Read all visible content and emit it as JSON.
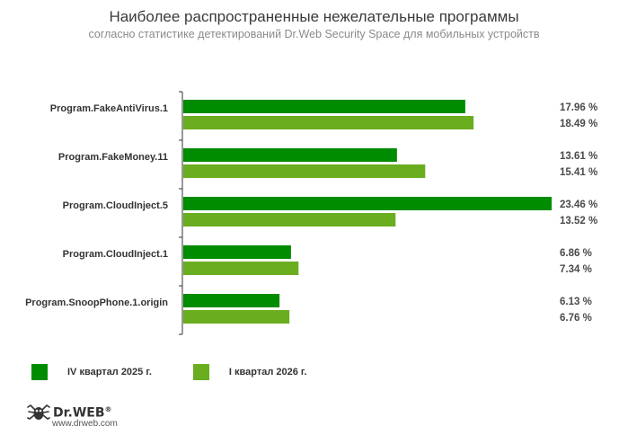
{
  "header": {
    "title": "Наиболее распространенные нежелательные программы",
    "subtitle": "согласно статистике детектирований Dr.Web Security Space для мобильных устройств"
  },
  "chart_data": {
    "type": "bar",
    "orientation": "horizontal",
    "title": "Наиболее распространенные нежелательные программы",
    "subtitle": "согласно статистике детектирований Dr.Web Security Space для мобильных устройств",
    "categories": [
      "Program.FakeAntiVirus.1",
      "Program.FakeMoney.11",
      "Program.CloudInject.5",
      "Program.CloudInject.1",
      "Program.SnoopPhone.1.origin"
    ],
    "series": [
      {
        "name": "IV квартал 2025 г.",
        "color": "#008c00",
        "values": [
          17.96,
          13.61,
          23.46,
          6.86,
          6.13
        ],
        "labels": [
          "17.96 %",
          "13.61 %",
          "23.46 %",
          "6.86 %",
          "6.13 %"
        ]
      },
      {
        "name": "I квартал 2026 г.",
        "color": "#6aad1e",
        "values": [
          18.49,
          15.41,
          13.52,
          7.34,
          6.76
        ],
        "labels": [
          "18.49 %",
          "15.41 %",
          "13.52 %",
          "7.34 %",
          "6.76 %"
        ]
      }
    ],
    "grid": false,
    "legend": "bottom-left"
  },
  "branding": {
    "logo_text": "Dr.WEB",
    "logo_reg": "®",
    "logo_icon": "spider-icon",
    "website": "www.drweb.com"
  }
}
